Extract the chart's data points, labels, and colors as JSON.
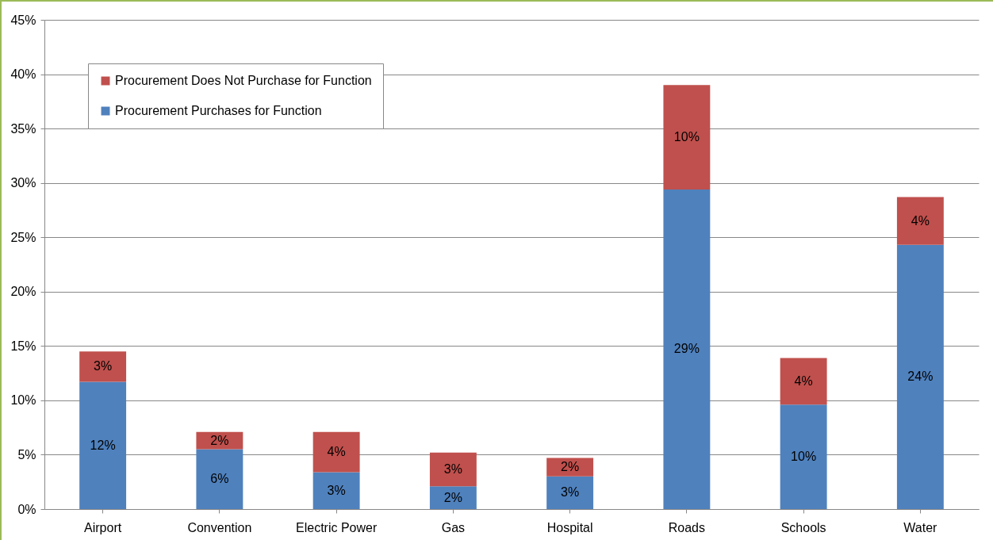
{
  "chart_data": {
    "type": "bar",
    "stacked": true,
    "categories": [
      "Airport",
      "Convention",
      "Electric Power",
      "Gas",
      "Hospital",
      "Roads",
      "Schools",
      "Water"
    ],
    "series": [
      {
        "name": "Procurement Purchases for Function",
        "color": "#4f81bd",
        "values": [
          11.7,
          5.5,
          3.4,
          2.1,
          3.0,
          29.4,
          9.6,
          24.3
        ],
        "value_labels": [
          "12%",
          "6%",
          "3%",
          "2%",
          "3%",
          "29%",
          "10%",
          "24%"
        ]
      },
      {
        "name": "Procurement Does Not Purchase for Function",
        "color": "#c0504d",
        "values": [
          2.8,
          1.6,
          3.7,
          3.1,
          1.7,
          9.6,
          4.3,
          4.4
        ],
        "value_labels": [
          "3%",
          "2%",
          "4%",
          "3%",
          "2%",
          "10%",
          "4%",
          "4%"
        ]
      }
    ],
    "ylim": [
      0,
      45
    ],
    "yticks": [
      {
        "value": 0,
        "label": "0%"
      },
      {
        "value": 5,
        "label": "5%"
      },
      {
        "value": 10,
        "label": "10%"
      },
      {
        "value": 15,
        "label": "15%"
      },
      {
        "value": 20,
        "label": "20%"
      },
      {
        "value": 25,
        "label": "25%"
      },
      {
        "value": 30,
        "label": "30%"
      },
      {
        "value": 35,
        "label": "35%"
      },
      {
        "value": 40,
        "label": "40%"
      },
      {
        "value": 45,
        "label": "45%"
      }
    ],
    "grid": "y",
    "legend": "top left"
  }
}
